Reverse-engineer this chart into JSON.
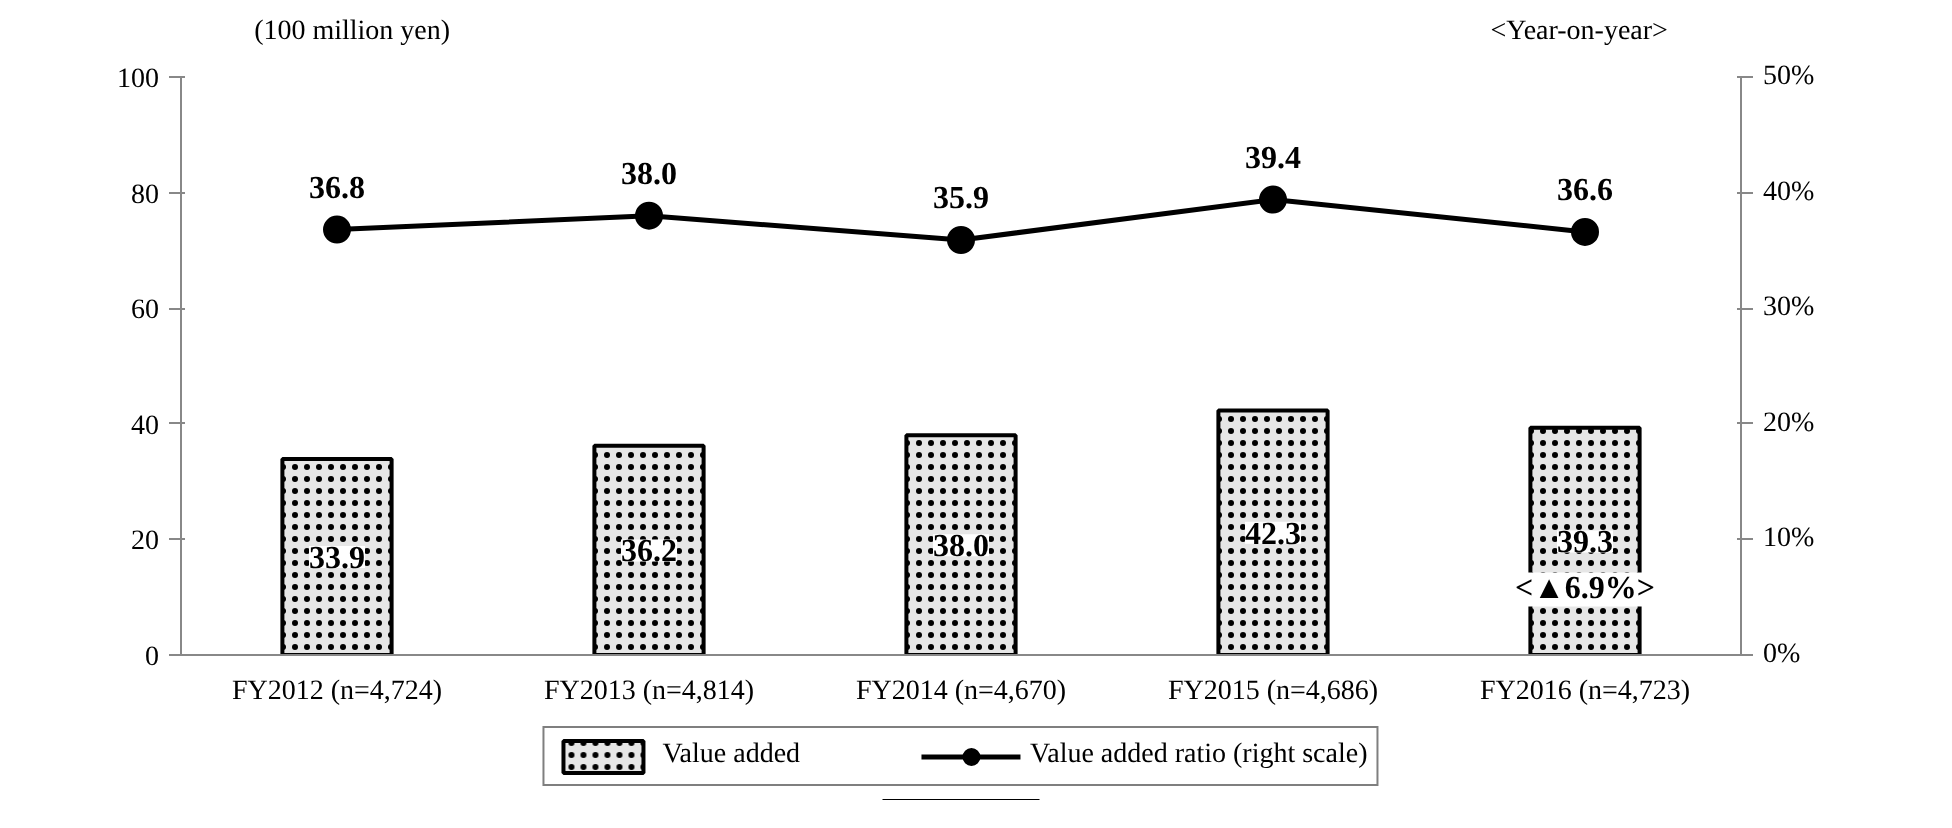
{
  "chart_data": {
    "type": "bar",
    "ylabel": "(100 million yen)",
    "y2label": "<Year-on-year>",
    "categories": [
      "FY2012 (n=4,724)",
      "FY2013 (n=4,814)",
      "FY2014 (n=4,670)",
      "FY2015 (n=4,686)",
      "FY2016 (n=4,723)"
    ],
    "series": [
      {
        "name": "Value added",
        "color": "#e6e6e6",
        "values": [
          33.9,
          36.2,
          38.0,
          42.3,
          39.3
        ],
        "value_labels": [
          "33.9",
          "36.2",
          "38.0",
          "42.3",
          "39.3"
        ]
      },
      {
        "name": "Value added ratio (right scale)",
        "type": "line",
        "axis": "y2",
        "color": "#000000",
        "values": [
          36.8,
          38.0,
          35.9,
          39.4,
          36.6
        ],
        "value_labels": [
          "36.8",
          "38.0",
          "35.9",
          "39.4",
          "36.6"
        ]
      }
    ],
    "ylim": [
      0,
      100
    ],
    "yticks": [
      0,
      20,
      40,
      60,
      80,
      100
    ],
    "y2lim": [
      0,
      50
    ],
    "y2ticks": [
      {
        "value": 0,
        "label": "0%"
      },
      {
        "value": 10,
        "label": "10%"
      },
      {
        "value": 20,
        "label": "20%"
      },
      {
        "value": 30,
        "label": "30%"
      },
      {
        "value": 40,
        "label": "40%"
      },
      {
        "value": 50,
        "label": "50%"
      }
    ],
    "annotations": [
      "<▲6.9%>"
    ],
    "marker": "circle",
    "legend": "bottom"
  }
}
